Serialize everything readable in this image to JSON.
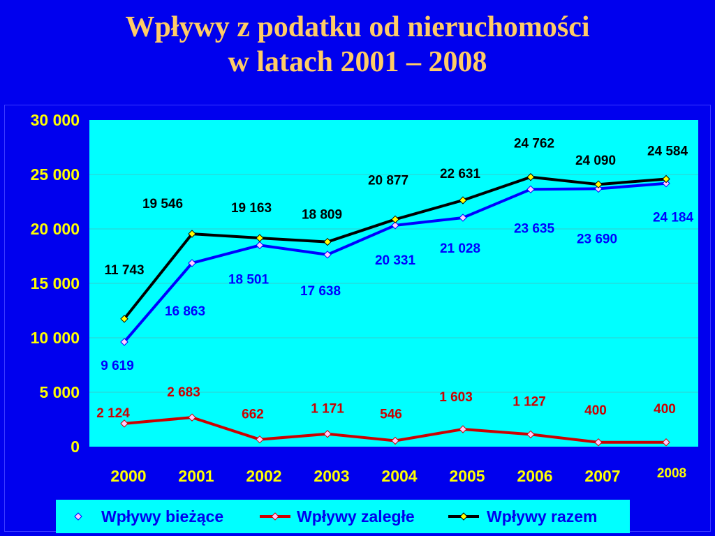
{
  "chart_data": {
    "type": "line",
    "title_line1": "Wpływy z podatku od nieruchomości",
    "title_line2": "w latach 2001 – 2008",
    "categories": [
      "2000",
      "2001",
      "2002",
      "2003",
      "2004",
      "2005",
      "2006",
      "2007",
      "2008"
    ],
    "ylim": [
      0,
      30000
    ],
    "yticks": [
      {
        "value": 0,
        "label": "0"
      },
      {
        "value": 5000,
        "label": "5 000"
      },
      {
        "value": 10000,
        "label": "10 000"
      },
      {
        "value": 15000,
        "label": "15 000"
      },
      {
        "value": 20000,
        "label": "20 000"
      },
      {
        "value": 25000,
        "label": "25 000"
      },
      {
        "value": 30000,
        "label": "30 000"
      }
    ],
    "grid": true,
    "legend_position": "bottom",
    "colors": {
      "background": "#0000ee",
      "plot": "#00ffff",
      "axis_text": "#ffff00",
      "grid": "#33cccc"
    },
    "series": [
      {
        "name": "Wpływy bieżące",
        "values": [
          9619,
          16863,
          18501,
          17638,
          20331,
          21028,
          23635,
          23690,
          24184
        ],
        "labels": [
          "9 619",
          "16 863",
          "18 501",
          "17 638",
          "20 331",
          "21 028",
          "23 635",
          "23 690",
          "24 184"
        ],
        "color": "#0000ff",
        "marker_color": "#ffccff",
        "label_color": "#0000ff"
      },
      {
        "name": "Wpływy zaległe",
        "values": [
          2124,
          2683,
          662,
          1171,
          546,
          1603,
          1127,
          400,
          400
        ],
        "labels": [
          "2 124",
          "2 683",
          "662",
          "1 171",
          "546",
          "1 603",
          "1 127",
          "400",
          "400"
        ],
        "color": "#cc0000",
        "marker_color": "#ffccff",
        "label_color": "#cc0000"
      },
      {
        "name": "Wpływy razem",
        "values": [
          11743,
          19546,
          19163,
          18809,
          20877,
          22631,
          24762,
          24090,
          24584
        ],
        "labels": [
          "11 743",
          "19 546",
          "19 163",
          "18 809",
          "20 877",
          "22 631",
          "24 762",
          "24 090",
          "24 584"
        ],
        "color": "#000000",
        "marker_color": "#ffff00",
        "label_color": "#000000"
      }
    ]
  }
}
